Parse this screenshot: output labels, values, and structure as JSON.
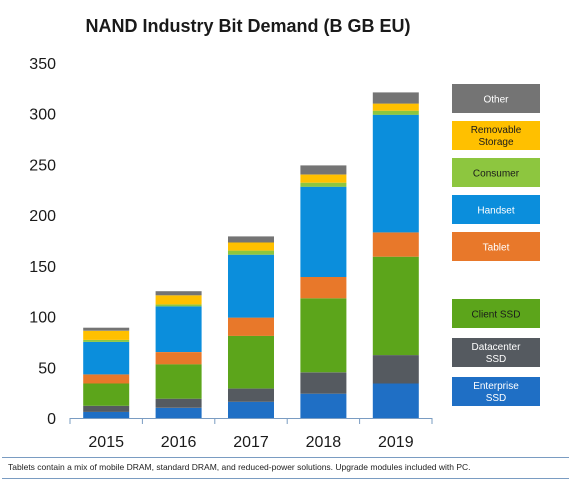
{
  "chart_data": {
    "type": "bar",
    "stacked": true,
    "title": "NAND Industry Bit Demand  (B GB EU)",
    "xlabel": "",
    "ylabel": "",
    "ylim": [
      0,
      350
    ],
    "yticks": [
      0,
      50,
      100,
      150,
      200,
      250,
      300,
      350
    ],
    "grid": false,
    "legend_position": "right",
    "categories": [
      "2015",
      "2016",
      "2017",
      "2018",
      "2019"
    ],
    "series": [
      {
        "name": "Enterprise SSD",
        "color": "#1f6fc5",
        "values": [
          6,
          10,
          16,
          24,
          34
        ]
      },
      {
        "name": "Datacenter SSD",
        "color": "#555a60",
        "values": [
          6,
          9,
          13,
          21,
          28
        ]
      },
      {
        "name": "Client SSD",
        "color": "#5ca51b",
        "values": [
          22,
          34,
          52,
          73,
          97
        ]
      },
      {
        "name": "Tablet",
        "color": "#e8782a",
        "values": [
          9,
          12,
          18,
          21,
          24
        ]
      },
      {
        "name": "Handset",
        "color": "#0b8edc",
        "values": [
          32,
          45,
          62,
          89,
          116
        ]
      },
      {
        "name": "Consumer",
        "color": "#8dc63f",
        "values": [
          2,
          2,
          4,
          4,
          4
        ]
      },
      {
        "name": "Removable Storage",
        "color": "#ffc000",
        "values": [
          9,
          9,
          8,
          8,
          7
        ]
      },
      {
        "name": "Other",
        "color": "#747474",
        "values": [
          3,
          4,
          6,
          9,
          11
        ]
      }
    ],
    "legend_order": [
      "Other",
      "Removable Storage",
      "Consumer",
      "Handset",
      "Tablet",
      "Client SSD",
      "Datacenter SSD",
      "Enterprise SSD"
    ],
    "legend_labels": {
      "Other": [
        "Other"
      ],
      "Removable Storage": [
        "Removable",
        "Storage"
      ],
      "Consumer": [
        "Consumer"
      ],
      "Handset": [
        "Handset"
      ],
      "Tablet": [
        "Tablet"
      ],
      "Client SSD": [
        "Client SSD"
      ],
      "Datacenter SSD": [
        "Datacenter",
        "SSD"
      ],
      "Enterprise SSD": [
        "Enterprise",
        "SSD"
      ]
    },
    "legend_text_colors": {
      "Other": "#ffffff",
      "Removable Storage": "#1a1a1a",
      "Consumer": "#1a1a1a",
      "Handset": "#ffffff",
      "Tablet": "#ffffff",
      "Client SSD": "#1a1a1a",
      "Datacenter SSD": "#ffffff",
      "Enterprise SSD": "#ffffff"
    }
  },
  "footnote": "Tablets contain a mix of mobile DRAM, standard DRAM, and reduced-power solutions.  Upgrade modules included with PC.",
  "colors": {
    "axis": "#7a9cc2",
    "tick_text": "#1a1a1a",
    "title_text": "#1a1a1a",
    "rule": "#7a9cc2",
    "logo": "#1f6fc5"
  }
}
